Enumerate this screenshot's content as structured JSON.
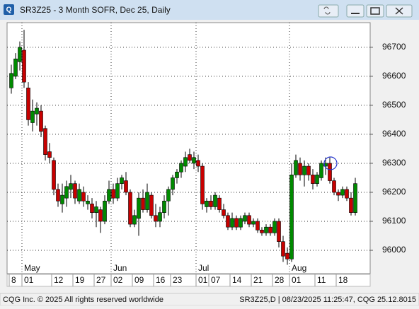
{
  "window": {
    "title": "SR3Z25 - 3 Month SOFR, Dec 25, Daily"
  },
  "chart_data": {
    "type": "candlestick",
    "categories": [
      "8",
      null,
      null,
      "01",
      null,
      null,
      null,
      null,
      null,
      null,
      "12",
      null,
      null,
      null,
      null,
      "19",
      null,
      null,
      null,
      null,
      "27",
      null,
      null,
      null,
      "02",
      null,
      null,
      null,
      null,
      "09",
      null,
      null,
      null,
      null,
      "16",
      null,
      null,
      null,
      "23",
      null,
      null,
      null,
      null,
      null,
      "01",
      null,
      null,
      "07",
      null,
      null,
      null,
      null,
      "14",
      null,
      null,
      null,
      null,
      "21",
      null,
      null,
      null,
      null,
      "28",
      null,
      null,
      null,
      "01",
      null,
      null,
      null,
      null,
      null,
      "11",
      null,
      null,
      null,
      null,
      "18",
      null,
      null,
      null,
      null
    ],
    "month_labels": [
      null,
      null,
      null,
      "May",
      null,
      null,
      null,
      null,
      null,
      null,
      null,
      null,
      null,
      null,
      null,
      null,
      null,
      null,
      null,
      null,
      null,
      null,
      null,
      null,
      "Jun",
      null,
      null,
      null,
      null,
      null,
      null,
      null,
      null,
      null,
      null,
      null,
      null,
      null,
      null,
      null,
      null,
      null,
      null,
      null,
      "Jul",
      null,
      null,
      null,
      null,
      null,
      null,
      null,
      null,
      null,
      null,
      null,
      null,
      null,
      null,
      null,
      null,
      null,
      null,
      null,
      null,
      null,
      "Aug",
      null,
      null,
      null,
      null,
      null,
      null,
      null,
      null,
      null,
      null,
      null,
      null,
      null,
      null,
      null
    ],
    "open": [
      96560,
      96600,
      96650,
      96690,
      96560,
      96440,
      96470,
      96480,
      96420,
      96340,
      96310,
      96210,
      96160,
      96180,
      96210,
      96230,
      96170,
      96200,
      96160,
      96160,
      96130,
      96140,
      96100,
      96170,
      96210,
      96180,
      96230,
      96240,
      96200,
      96090,
      96110,
      96180,
      96140,
      96190,
      96120,
      96100,
      96130,
      96170,
      96210,
      96250,
      96270,
      96290,
      96330,
      96300,
      96310,
      96290,
      96150,
      96170,
      96150,
      96180,
      96140,
      96120,
      96080,
      96110,
      96080,
      96100,
      96120,
      96090,
      96100,
      96070,
      96060,
      96080,
      96060,
      96100,
      96030,
      95990,
      95970,
      96260,
      96300,
      96260,
      96290,
      96260,
      96230,
      96250,
      96290,
      96300,
      96240,
      96200,
      96190,
      96210,
      96180,
      96130
    ],
    "high": [
      96640,
      96680,
      96720,
      96760,
      96580,
      96520,
      96510,
      96500,
      96430,
      96370,
      96320,
      96230,
      96230,
      96240,
      96260,
      96240,
      96230,
      96220,
      96190,
      96180,
      96170,
      96150,
      96190,
      96240,
      96230,
      96250,
      96260,
      96270,
      96210,
      96140,
      96200,
      96210,
      96230,
      96200,
      96160,
      96150,
      96190,
      96220,
      96260,
      96280,
      96310,
      96340,
      96350,
      96340,
      96330,
      96300,
      96180,
      96190,
      96200,
      96190,
      96160,
      96130,
      96130,
      96120,
      96120,
      96130,
      96130,
      96110,
      96110,
      96080,
      96090,
      96090,
      96110,
      96110,
      96050,
      96010,
      96300,
      96330,
      96320,
      96310,
      96300,
      96280,
      96270,
      96310,
      96320,
      96320,
      96250,
      96210,
      96220,
      96220,
      96200,
      96250
    ],
    "low": [
      96540,
      96590,
      96620,
      96560,
      96430,
      96410,
      96430,
      96390,
      96310,
      96300,
      96190,
      96150,
      96130,
      96150,
      96180,
      96160,
      96160,
      96150,
      96140,
      96110,
      96080,
      96060,
      96090,
      96160,
      96160,
      96170,
      96210,
      96190,
      96080,
      96080,
      96050,
      96130,
      96130,
      96110,
      96080,
      96080,
      96110,
      96120,
      96190,
      96230,
      96250,
      96270,
      96300,
      96280,
      96270,
      96140,
      96130,
      96140,
      96140,
      96130,
      96110,
      96070,
      96070,
      96070,
      96070,
      96090,
      96080,
      96080,
      96060,
      96050,
      96050,
      96050,
      96050,
      96010,
      95960,
      95950,
      95960,
      96250,
      96240,
      96220,
      96240,
      96210,
      96220,
      96240,
      96260,
      96230,
      96190,
      96170,
      96180,
      96170,
      96120,
      96120
    ],
    "close": [
      96610,
      96660,
      96700,
      96580,
      96450,
      96480,
      96490,
      96410,
      96330,
      96320,
      96210,
      96170,
      96190,
      96220,
      96230,
      96180,
      96210,
      96170,
      96170,
      96130,
      96150,
      96100,
      96170,
      96210,
      96180,
      96230,
      96250,
      96200,
      96090,
      96120,
      96180,
      96140,
      96200,
      96120,
      96100,
      96130,
      96170,
      96210,
      96250,
      96270,
      96300,
      96320,
      96310,
      96320,
      96290,
      96160,
      96170,
      96150,
      96190,
      96140,
      96120,
      96080,
      96110,
      96080,
      96110,
      96120,
      96090,
      96100,
      96070,
      96060,
      96080,
      96060,
      96100,
      96030,
      95980,
      95970,
      96260,
      96310,
      96260,
      96290,
      96260,
      96230,
      96260,
      96300,
      96300,
      96240,
      96200,
      96190,
      96210,
      96180,
      96130,
      96230
    ],
    "up_color": "#008a00",
    "down_color": "#c80000",
    "ylim": [
      95922,
      96785
    ],
    "yticks": [
      96000,
      96100,
      96200,
      96300,
      96400,
      96500,
      96600,
      96700
    ],
    "grid": true
  },
  "status": {
    "left": "CQG Inc. © 2025 All rights reserved worldwide",
    "right": "SR3Z25,D | 08/23/2025 11:25:47, CQG 25.12.8015"
  }
}
